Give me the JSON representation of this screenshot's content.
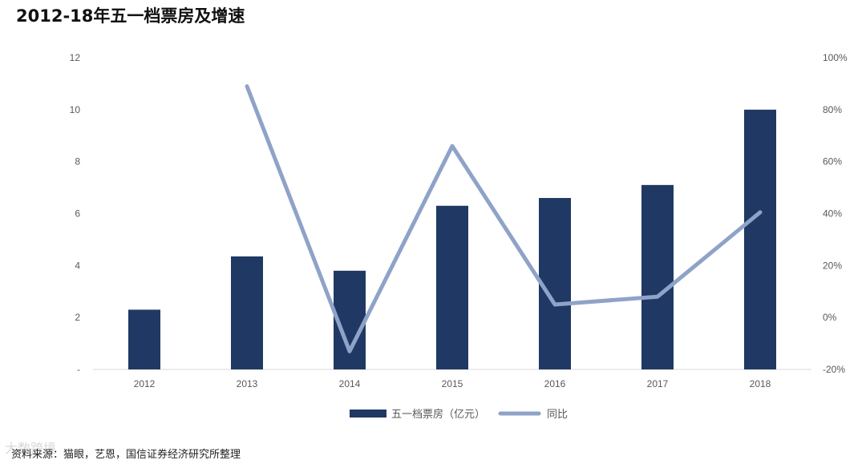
{
  "title": "2012-18年五一档票房及增速",
  "source": "资料来源：猫眼，艺恩，国信证券经济研究所整理",
  "watermark": "大数跨境",
  "colors": {
    "bar": "#203864",
    "line": "#8FA3C8"
  },
  "chart_data": {
    "type": "bar",
    "categories": [
      "2012",
      "2013",
      "2014",
      "2015",
      "2016",
      "2017",
      "2018"
    ],
    "series": [
      {
        "name": "五一档票房（亿元）",
        "type": "bar",
        "axis": "left",
        "values": [
          2.3,
          4.35,
          3.8,
          6.3,
          6.6,
          7.1,
          10.0
        ]
      },
      {
        "name": "同比",
        "type": "line",
        "axis": "right",
        "values": [
          null,
          89,
          -13,
          66,
          5,
          8,
          40.5
        ]
      }
    ],
    "y_left": {
      "ylim": [
        0,
        12
      ],
      "ticks": [
        "-",
        "2",
        "4",
        "6",
        "8",
        "10",
        "12"
      ]
    },
    "y_right": {
      "ylim": [
        -20,
        100
      ],
      "ticks": [
        "-20%",
        "0%",
        "20%",
        "40%",
        "60%",
        "80%",
        "100%"
      ]
    },
    "legend_position": "bottom-center",
    "grid": false
  }
}
